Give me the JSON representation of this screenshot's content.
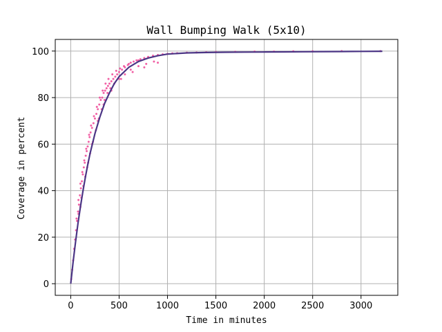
{
  "chart_data": {
    "type": "scatter",
    "title": "Wall Bumping Walk (5x10)",
    "xlabel": "Time in minutes",
    "ylabel": "Coverage in percent",
    "xlim": [
      -160,
      3380
    ],
    "ylim": [
      -5,
      105
    ],
    "xticks": [
      0,
      500,
      1000,
      1500,
      2000,
      2500,
      3000
    ],
    "yticks": [
      0,
      20,
      40,
      60,
      80,
      100
    ],
    "grid": true,
    "colors": {
      "scatter": "#f0509b",
      "fit": "#4b3585"
    },
    "series": [
      {
        "kind": "scatter",
        "points": [
          [
            5,
            2
          ],
          [
            15,
            6
          ],
          [
            25,
            10
          ],
          [
            35,
            15
          ],
          [
            45,
            19
          ],
          [
            55,
            23
          ],
          [
            65,
            27
          ],
          [
            75,
            31
          ],
          [
            85,
            34
          ],
          [
            95,
            38
          ],
          [
            105,
            41
          ],
          [
            115,
            44
          ],
          [
            125,
            47
          ],
          [
            135,
            50
          ],
          [
            145,
            52
          ],
          [
            155,
            55
          ],
          [
            165,
            57
          ],
          [
            175,
            59
          ],
          [
            185,
            61
          ],
          [
            195,
            63
          ],
          [
            205,
            65
          ],
          [
            220,
            67
          ],
          [
            235,
            69
          ],
          [
            250,
            71
          ],
          [
            265,
            73
          ],
          [
            280,
            75
          ],
          [
            295,
            77
          ],
          [
            310,
            79
          ],
          [
            325,
            80
          ],
          [
            340,
            82
          ],
          [
            355,
            83
          ],
          [
            370,
            84
          ],
          [
            385,
            85
          ],
          [
            400,
            86
          ],
          [
            420,
            87
          ],
          [
            440,
            88
          ],
          [
            460,
            89
          ],
          [
            480,
            90
          ],
          [
            500,
            91
          ],
          [
            530,
            92
          ],
          [
            560,
            93
          ],
          [
            590,
            94
          ],
          [
            620,
            95
          ],
          [
            650,
            95.5
          ],
          [
            680,
            96
          ],
          [
            720,
            96.5
          ],
          [
            760,
            97
          ],
          [
            800,
            97.5
          ],
          [
            850,
            98
          ],
          [
            900,
            98.3
          ],
          [
            950,
            98.6
          ],
          [
            1000,
            98.8
          ],
          [
            1050,
            99
          ],
          [
            1100,
            99.1
          ],
          [
            1200,
            99.3
          ],
          [
            1300,
            99.4
          ],
          [
            1400,
            99.5
          ],
          [
            1500,
            99.6
          ],
          [
            1700,
            99.7
          ],
          [
            1900,
            99.8
          ],
          [
            2100,
            99.8
          ],
          [
            2300,
            99.9
          ],
          [
            2500,
            99.9
          ],
          [
            2800,
            100
          ],
          [
            3200,
            100
          ],
          [
            60,
            28
          ],
          [
            80,
            36
          ],
          [
            100,
            43
          ],
          [
            120,
            48
          ],
          [
            140,
            53
          ],
          [
            160,
            58
          ],
          [
            190,
            64
          ],
          [
            210,
            68
          ],
          [
            240,
            72
          ],
          [
            270,
            76
          ],
          [
            300,
            80
          ],
          [
            330,
            83
          ],
          [
            360,
            86
          ],
          [
            390,
            88
          ],
          [
            430,
            90
          ],
          [
            470,
            91.5
          ],
          [
            510,
            92.5
          ],
          [
            550,
            93.5
          ],
          [
            600,
            94.5
          ],
          [
            700,
            96
          ],
          [
            80,
            30
          ],
          [
            110,
            37
          ],
          [
            130,
            42
          ],
          [
            150,
            46
          ],
          [
            180,
            52
          ],
          [
            200,
            56
          ],
          [
            230,
            61
          ],
          [
            260,
            66
          ],
          [
            290,
            71
          ],
          [
            320,
            75
          ],
          [
            350,
            79
          ],
          [
            380,
            82
          ],
          [
            410,
            84
          ],
          [
            450,
            86
          ],
          [
            500,
            88
          ],
          [
            560,
            90
          ],
          [
            620,
            92
          ],
          [
            700,
            93.5
          ],
          [
            780,
            94.5
          ],
          [
            860,
            95.5
          ],
          [
            100,
            33
          ],
          [
            170,
            50
          ],
          [
            220,
            60
          ],
          [
            280,
            70
          ],
          [
            340,
            77
          ],
          [
            420,
            83
          ],
          [
            520,
            88
          ],
          [
            640,
            91
          ],
          [
            760,
            93
          ],
          [
            900,
            95
          ]
        ]
      },
      {
        "kind": "line",
        "x": [
          0,
          25,
          50,
          75,
          100,
          125,
          150,
          175,
          200,
          250,
          300,
          350,
          400,
          450,
          500,
          600,
          700,
          800,
          900,
          1000,
          1200,
          1400,
          1600,
          1800,
          2000,
          2200,
          2400,
          2600,
          2800,
          3000,
          3220
        ],
        "y": [
          0,
          9.5,
          18,
          26,
          33,
          39.5,
          45.5,
          51,
          56,
          64.5,
          71.5,
          77.5,
          82,
          86,
          89,
          93,
          95.5,
          97,
          98,
          98.7,
          99.2,
          99.4,
          99.5,
          99.55,
          99.6,
          99.65,
          99.7,
          99.75,
          99.8,
          99.85,
          99.9
        ]
      }
    ]
  }
}
